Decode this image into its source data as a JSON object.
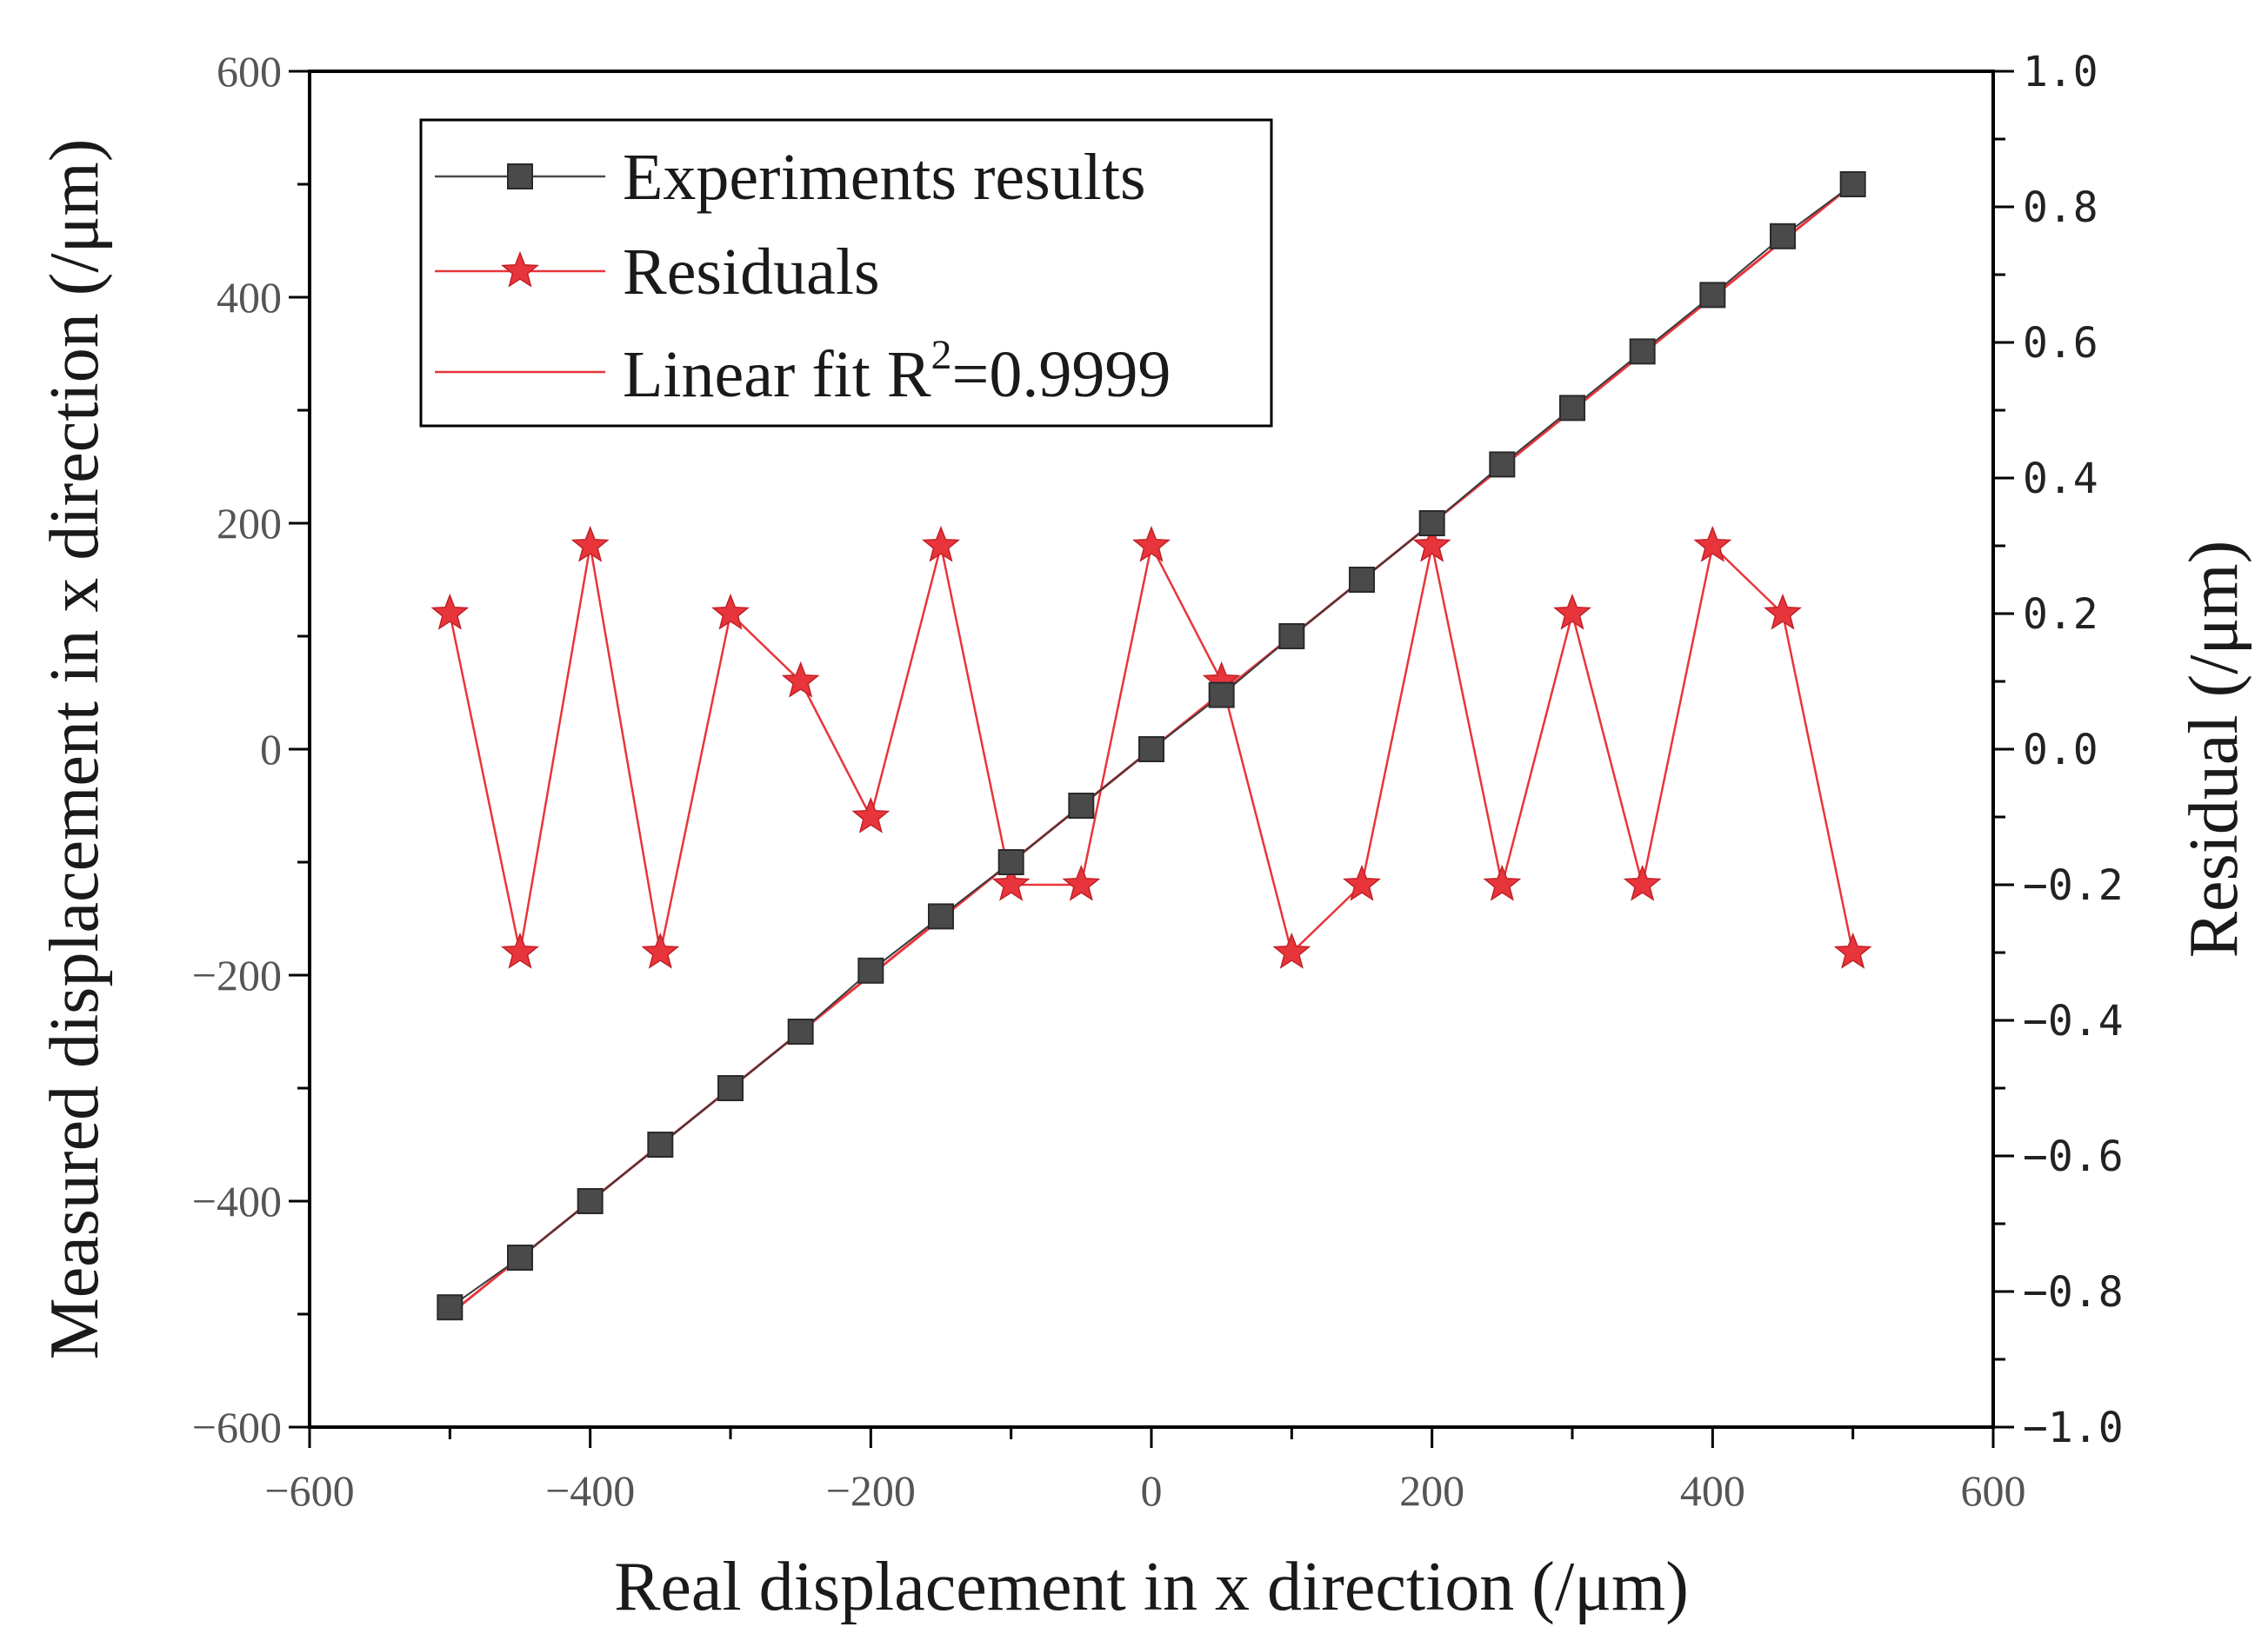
{
  "chart_data": {
    "type": "line",
    "xlabel": "Real displacement in x direction (/μm)",
    "ylabel": "Measured displacement in x direction (/μm)",
    "y2label": "Residual (/μm)",
    "xlim": [
      -600,
      600
    ],
    "ylim": [
      -600,
      600
    ],
    "y2lim": [
      -1.0,
      1.0
    ],
    "xticks": [
      "−600",
      "−400",
      "−200",
      "0",
      "200",
      "400",
      "600"
    ],
    "yticks": [
      "−600",
      "−400",
      "−200",
      "0",
      "200",
      "400",
      "600"
    ],
    "y2ticks": [
      "−1.0",
      "−0.8",
      "−0.6",
      "−0.4",
      "−0.2",
      "0.0",
      "0.2",
      "0.4",
      "0.6",
      "0.8",
      "1.0"
    ],
    "x": [
      -500,
      -450,
      -400,
      -350,
      -300,
      -250,
      -200,
      -150,
      -100,
      -50,
      0,
      50,
      100,
      150,
      200,
      250,
      300,
      350,
      400,
      450,
      500
    ],
    "series": [
      {
        "name": "Experiments results",
        "axis": "left",
        "marker": "square",
        "color": "#4a4a4a",
        "values": [
          -494,
          -450,
          -400,
          -350,
          -300,
          -250,
          -196,
          -148,
          -100,
          -50,
          0,
          48,
          100,
          150,
          200,
          252,
          302,
          352,
          402,
          454,
          500
        ]
      },
      {
        "name": "Residuals",
        "axis": "right",
        "marker": "star",
        "color": "#e8353b",
        "values": [
          0.2,
          -0.3,
          0.3,
          -0.3,
          0.2,
          0.1,
          -0.1,
          0.3,
          -0.2,
          -0.2,
          0.3,
          0.1,
          -0.3,
          -0.2,
          0.3,
          -0.2,
          0.2,
          -0.2,
          0.3,
          0.2,
          -0.3
        ]
      },
      {
        "name": "Linear fit",
        "axis": "left",
        "marker": "none",
        "color": "#e8353b",
        "fit_range": [
          -500,
          500
        ],
        "fit_values": [
          -500,
          500
        ]
      }
    ],
    "legend": {
      "position": "top-left",
      "items": [
        "Experiments results",
        "Residuals",
        "Linear fit R"
      ],
      "r_sup": "2",
      "r_value": "=0.9999"
    },
    "grid": false
  }
}
